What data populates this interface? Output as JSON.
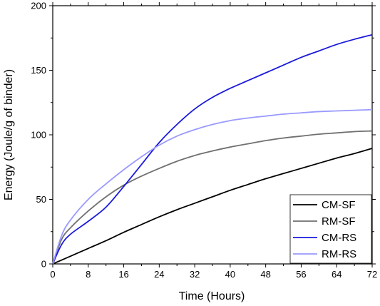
{
  "chart_data": {
    "type": "line",
    "xlabel": "Time (Hours)",
    "ylabel": "Energy (Joule/g of binder)",
    "xlim": [
      0,
      72
    ],
    "ylim": [
      0,
      200
    ],
    "xticks": [
      0,
      8,
      16,
      24,
      32,
      40,
      48,
      56,
      64,
      72
    ],
    "yticks": [
      0,
      50,
      100,
      150,
      200
    ],
    "grid": false,
    "legend_position": "bottom-right",
    "series": [
      {
        "name": "CM-SF",
        "color": "#000000",
        "x": [
          0,
          4,
          8,
          12,
          16,
          20,
          24,
          28,
          32,
          36,
          40,
          44,
          48,
          52,
          56,
          60,
          64,
          68,
          72
        ],
        "y": [
          0,
          6,
          12,
          18,
          24.5,
          30.5,
          36.5,
          42,
          47,
          52,
          57,
          61.5,
          66,
          70,
          74,
          78,
          82,
          85.5,
          89.5
        ]
      },
      {
        "name": "RM-SF",
        "color": "#707070",
        "x": [
          0,
          2,
          4,
          8,
          12,
          16,
          20,
          24,
          28,
          32,
          36,
          40,
          44,
          48,
          52,
          56,
          60,
          64,
          68,
          72
        ],
        "y": [
          0,
          19,
          28,
          41,
          52,
          61,
          68,
          74,
          79.5,
          84,
          87.5,
          90.5,
          93,
          95.5,
          97.5,
          99,
          100.5,
          101.5,
          102.5,
          103
        ]
      },
      {
        "name": "CM-RS",
        "color": "#1a1adb",
        "x": [
          0,
          2,
          4,
          8,
          12,
          16,
          20,
          24,
          28,
          32,
          36,
          40,
          44,
          48,
          52,
          56,
          60,
          64,
          68,
          72
        ],
        "y": [
          0,
          15,
          23,
          33,
          44,
          60,
          77,
          94,
          108,
          120,
          129,
          136,
          142,
          148,
          154,
          160,
          165,
          170,
          174,
          177.5
        ]
      },
      {
        "name": "RM-RS",
        "color": "#9a9aff",
        "x": [
          0,
          2,
          4,
          8,
          12,
          16,
          20,
          24,
          28,
          32,
          36,
          40,
          44,
          48,
          52,
          56,
          60,
          64,
          68,
          72
        ],
        "y": [
          0,
          22,
          34,
          50,
          62,
          73,
          83,
          92,
          99,
          104,
          108,
          111,
          113,
          114.5,
          116,
          117,
          118,
          118.5,
          119,
          119.5
        ]
      }
    ]
  }
}
